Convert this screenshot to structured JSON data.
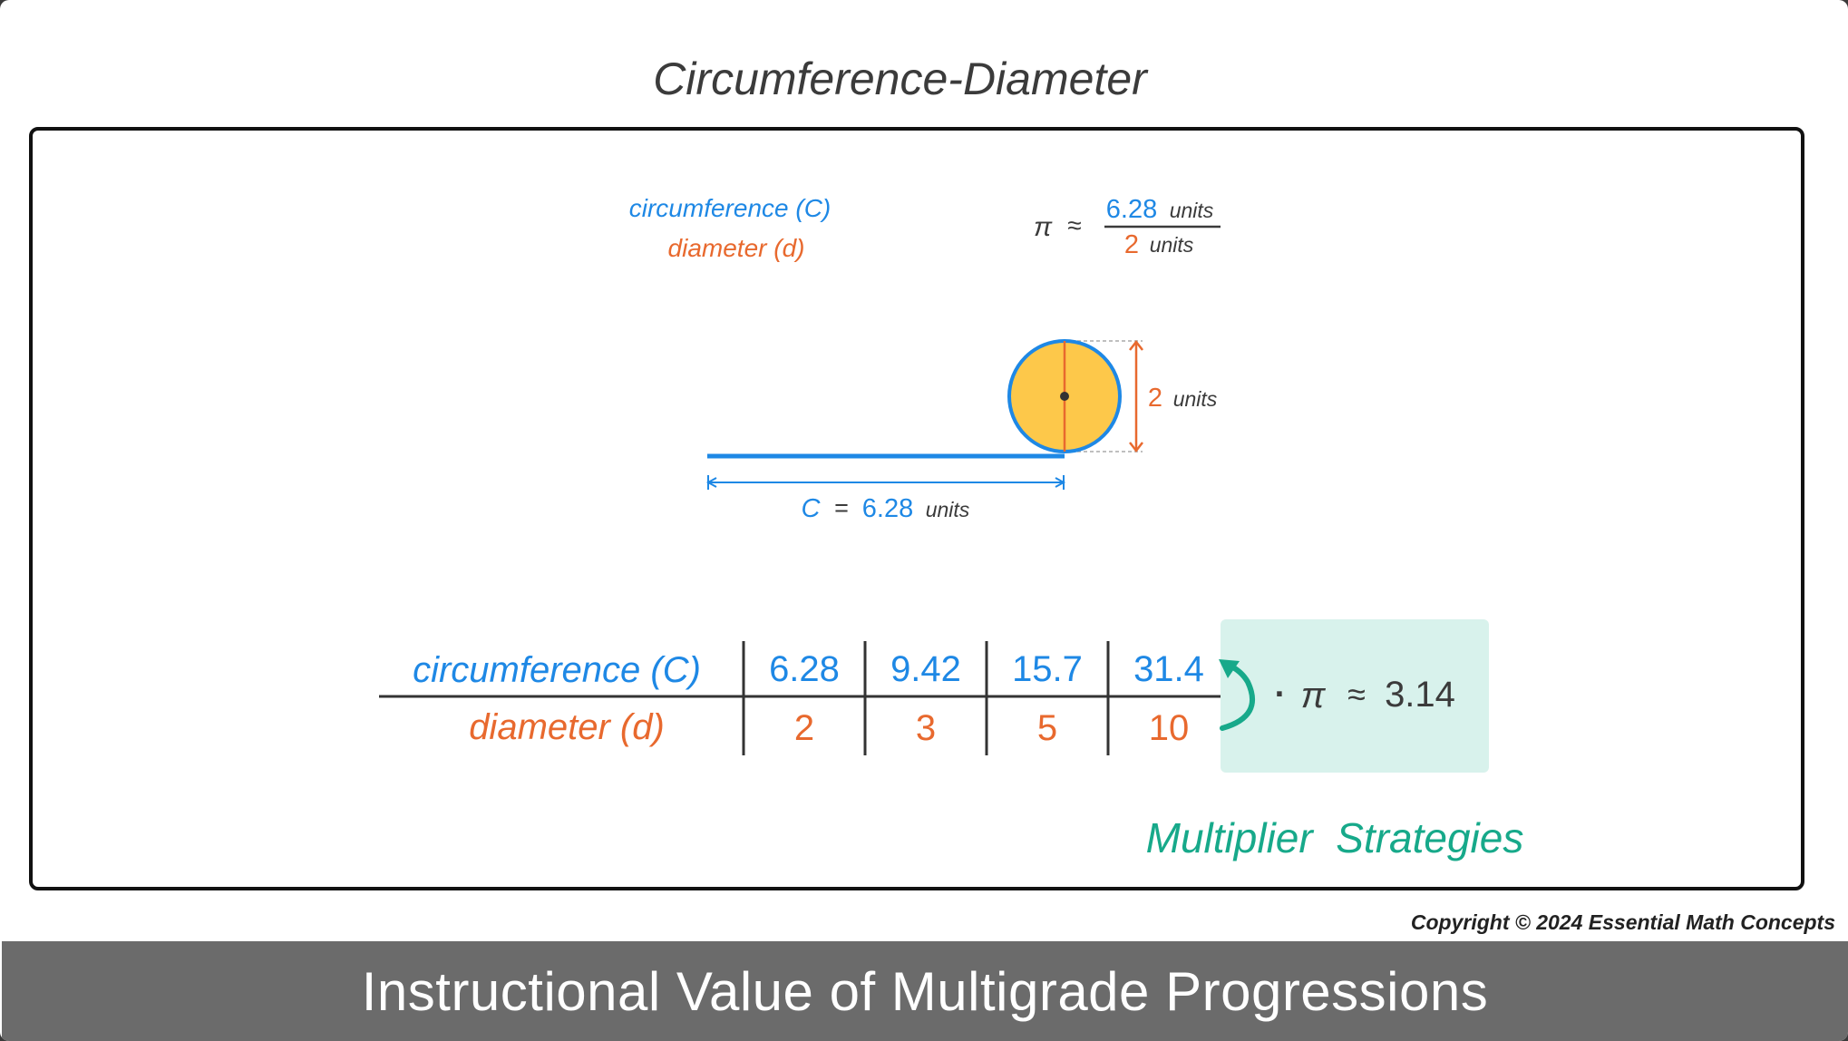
{
  "title": "Circumference-Diameter",
  "legend": {
    "circumference": "circumference (C)",
    "diameter": "diameter (d)"
  },
  "pi_ratio": {
    "pi_symbol": "π",
    "approx": "≈",
    "numerator_value": "6.28",
    "numerator_unit": "units",
    "denominator_value": "2",
    "denominator_unit": "units"
  },
  "circle": {
    "diameter_value": "2",
    "diameter_unit": "units"
  },
  "circumference_line": {
    "symbol": "C",
    "equals": "=",
    "value": "6.28",
    "unit": "units"
  },
  "table": {
    "row1_label": "circumference (C)",
    "row2_label": "diameter (d)",
    "circumference_values": [
      "6.28",
      "9.42",
      "15.7",
      "31.4"
    ],
    "diameter_values": [
      "2",
      "3",
      "5",
      "10"
    ]
  },
  "multiplier": {
    "dot": "·",
    "pi_symbol": "π",
    "approx": "≈",
    "value": "3.14"
  },
  "strategy_label": "Multiplier  Strategies",
  "copyright": "Copyright © 2024 Essential Math Concepts",
  "banner": "Instructional Value of Multigrade Progressions",
  "colors": {
    "circumference": "#1e88e5",
    "diameter": "#e8692e",
    "circle_fill": "#fdc84a",
    "teal": "#17a98a",
    "multiplier_box": "#d8f2ec",
    "banner": "#6b6b6b"
  }
}
